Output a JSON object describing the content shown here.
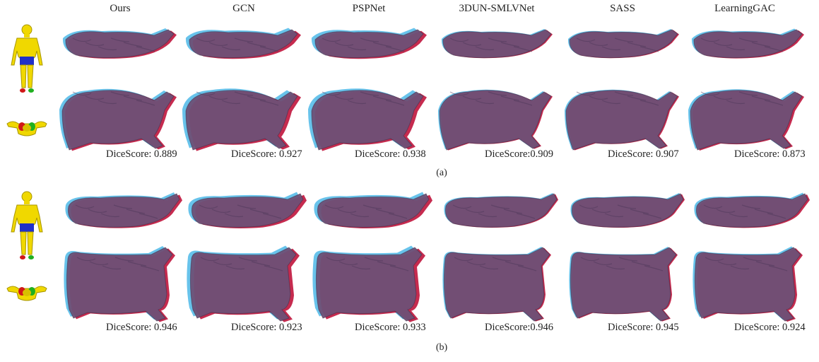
{
  "columns": [
    "Ours",
    "GCN",
    "PSPNet",
    "3DUN-SMLVNet",
    "SASS",
    "LearningGAC"
  ],
  "panels": [
    {
      "caption": "(a)",
      "scores": [
        "DiceScore: 0.889",
        "DiceScore: 0.927",
        "DiceScore: 0.938",
        "DiceScore:0.909",
        "DiceScore: 0.907",
        "DiceScore: 0.873"
      ]
    },
    {
      "caption": "(b)",
      "scores": [
        "DiceScore: 0.946",
        "DiceScore: 0.923",
        "DiceScore: 0.933",
        "DiceScore:0.946",
        "DiceScore: 0.945",
        "DiceScore: 0.924"
      ]
    }
  ],
  "colors": {
    "prediction": "#4db8e8",
    "ground_truth": "#c0143c",
    "overlap": "#6e5076",
    "mannequin": "#f0d800",
    "shorts": "#2030c8"
  }
}
